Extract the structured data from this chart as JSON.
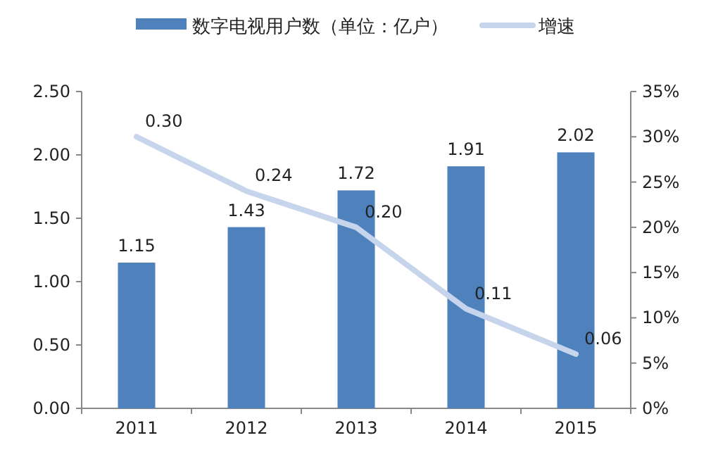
{
  "chart_data": {
    "type": "bar",
    "categories": [
      "2011",
      "2012",
      "2013",
      "2014",
      "2015"
    ],
    "series": [
      {
        "name": "数字电视用户数（单位：亿户）",
        "color": "#4f81bd",
        "values": [
          1.15,
          1.43,
          1.72,
          1.91,
          2.02
        ]
      },
      {
        "name": "增速",
        "type": "line",
        "axis": "y2",
        "color": "#c6d4ec",
        "values": [
          0.3,
          0.24,
          0.2,
          0.11,
          0.06
        ],
        "value_labels": [
          "0.30",
          "0.24",
          "0.20",
          "0.11",
          "0.06"
        ]
      }
    ],
    "ylim": [
      0,
      2.5
    ],
    "yticks": [
      {
        "value": 0,
        "label": "0.00"
      },
      {
        "value": 0.5,
        "label": "0.50"
      },
      {
        "value": 1,
        "label": "1.00"
      },
      {
        "value": 1.5,
        "label": "1.50"
      },
      {
        "value": 2,
        "label": "2.00"
      },
      {
        "value": 2.5,
        "label": "2.50"
      }
    ],
    "y2lim": [
      0,
      0.35
    ],
    "y2ticks": [
      {
        "value": 0,
        "label": "0%"
      },
      {
        "value": 0.05,
        "label": "5%"
      },
      {
        "value": 0.1,
        "label": "10%"
      },
      {
        "value": 0.15,
        "label": "15%"
      },
      {
        "value": 0.2,
        "label": "20%"
      },
      {
        "value": 0.25,
        "label": "25%"
      },
      {
        "value": 0.3,
        "label": "30%"
      },
      {
        "value": 0.35,
        "label": "35%"
      }
    ],
    "data_labels": true,
    "legend": "top"
  }
}
